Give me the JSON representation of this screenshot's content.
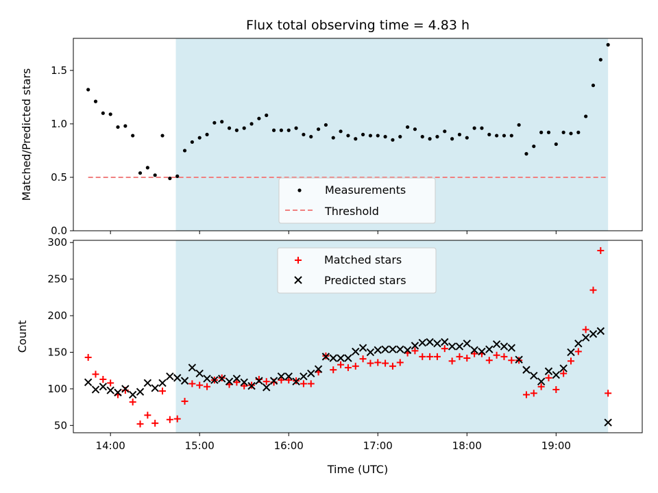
{
  "chart_data": [
    {
      "type": "scatter",
      "title": "Flux total observing time = 4.83 h",
      "ylabel": "Matched/Predicted stars",
      "xlabel": "",
      "ylim": [
        0,
        1.8
      ],
      "yticks": [
        0.0,
        0.5,
        1.0,
        1.5
      ],
      "ytick_labels": [
        "0.0",
        "0.5",
        "1.0",
        "1.5"
      ],
      "xlim": [
        "13:35",
        "19:58"
      ],
      "grid": false,
      "legend_position": "bottom-center",
      "shaded_region": {
        "x": [
          "14:44",
          "19:35"
        ],
        "color": "#add8e6"
      },
      "series": [
        {
          "name": "Measurements",
          "marker": "dot",
          "color": "#000000",
          "points": [
            [
              "13:45",
              1.32
            ],
            [
              "13:50",
              1.21
            ],
            [
              "13:55",
              1.1
            ],
            [
              "14:00",
              1.09
            ],
            [
              "14:05",
              0.97
            ],
            [
              "14:10",
              0.98
            ],
            [
              "14:15",
              0.89
            ],
            [
              "14:20",
              0.54
            ],
            [
              "14:25",
              0.59
            ],
            [
              "14:30",
              0.52
            ],
            [
              "14:35",
              0.89
            ],
            [
              "14:40",
              0.49
            ],
            [
              "14:45",
              0.51
            ],
            [
              "14:50",
              0.75
            ],
            [
              "14:55",
              0.83
            ],
            [
              "15:00",
              0.87
            ],
            [
              "15:05",
              0.9
            ],
            [
              "15:10",
              1.01
            ],
            [
              "15:15",
              1.02
            ],
            [
              "15:20",
              0.96
            ],
            [
              "15:25",
              0.94
            ],
            [
              "15:30",
              0.96
            ],
            [
              "15:35",
              1.0
            ],
            [
              "15:40",
              1.05
            ],
            [
              "15:45",
              1.08
            ],
            [
              "15:50",
              0.94
            ],
            [
              "15:55",
              0.94
            ],
            [
              "16:00",
              0.94
            ],
            [
              "16:05",
              0.96
            ],
            [
              "16:10",
              0.9
            ],
            [
              "16:15",
              0.88
            ],
            [
              "16:20",
              0.95
            ],
            [
              "16:25",
              0.99
            ],
            [
              "16:30",
              0.87
            ],
            [
              "16:35",
              0.93
            ],
            [
              "16:40",
              0.89
            ],
            [
              "16:45",
              0.86
            ],
            [
              "16:50",
              0.9
            ],
            [
              "16:55",
              0.89
            ],
            [
              "17:00",
              0.89
            ],
            [
              "17:05",
              0.88
            ],
            [
              "17:10",
              0.85
            ],
            [
              "17:15",
              0.88
            ],
            [
              "17:20",
              0.97
            ],
            [
              "17:25",
              0.95
            ],
            [
              "17:30",
              0.88
            ],
            [
              "17:35",
              0.86
            ],
            [
              "17:40",
              0.88
            ],
            [
              "17:45",
              0.93
            ],
            [
              "17:50",
              0.86
            ],
            [
              "17:55",
              0.9
            ],
            [
              "18:00",
              0.87
            ],
            [
              "18:05",
              0.96
            ],
            [
              "18:10",
              0.96
            ],
            [
              "18:15",
              0.9
            ],
            [
              "18:20",
              0.89
            ],
            [
              "18:25",
              0.89
            ],
            [
              "18:30",
              0.89
            ],
            [
              "18:35",
              0.99
            ],
            [
              "18:40",
              0.72
            ],
            [
              "18:45",
              0.79
            ],
            [
              "18:50",
              0.92
            ],
            [
              "18:55",
              0.92
            ],
            [
              "19:00",
              0.81
            ],
            [
              "19:05",
              0.92
            ],
            [
              "19:10",
              0.91
            ],
            [
              "19:15",
              0.92
            ],
            [
              "19:20",
              1.07
            ],
            [
              "19:25",
              1.36
            ],
            [
              "19:30",
              1.6
            ],
            [
              "19:35",
              1.74
            ]
          ]
        },
        {
          "name": "Threshold",
          "type": "line",
          "style": "dashed",
          "color": "#f08080",
          "points": [
            [
              "13:45",
              0.5
            ],
            [
              "19:35",
              0.5
            ]
          ]
        }
      ]
    },
    {
      "type": "scatter",
      "title": "",
      "ylabel": "Count",
      "xlabel": "Time (UTC)",
      "ylim": [
        40,
        303
      ],
      "yticks": [
        50,
        100,
        150,
        200,
        250,
        300
      ],
      "ytick_labels": [
        "50",
        "100",
        "150",
        "200",
        "250",
        "300"
      ],
      "xlim": [
        "13:35",
        "19:58"
      ],
      "xticks": [
        "14:00",
        "15:00",
        "16:00",
        "17:00",
        "18:00",
        "19:00"
      ],
      "xtick_labels": [
        "14:00",
        "15:00",
        "16:00",
        "17:00",
        "18:00",
        "19:00"
      ],
      "grid": false,
      "legend_position": "top-center",
      "shaded_region": {
        "x": [
          "14:44",
          "19:35"
        ],
        "color": "#add8e6"
      },
      "series": [
        {
          "name": "Matched stars",
          "marker": "plus",
          "color": "#ff0000",
          "points": [
            [
              "13:45",
              143
            ],
            [
              "13:50",
              120
            ],
            [
              "13:55",
              113
            ],
            [
              "14:00",
              108
            ],
            [
              "14:05",
              92
            ],
            [
              "14:10",
              98
            ],
            [
              "14:15",
              82
            ],
            [
              "14:20",
              52
            ],
            [
              "14:25",
              64
            ],
            [
              "14:30",
              53
            ],
            [
              "14:35",
              97
            ],
            [
              "14:40",
              58
            ],
            [
              "14:45",
              59
            ],
            [
              "14:50",
              83
            ],
            [
              "14:55",
              107
            ],
            [
              "15:00",
              105
            ],
            [
              "15:05",
              103
            ],
            [
              "15:10",
              112
            ],
            [
              "15:15",
              115
            ],
            [
              "15:20",
              106
            ],
            [
              "15:25",
              109
            ],
            [
              "15:30",
              104
            ],
            [
              "15:35",
              105
            ],
            [
              "15:40",
              113
            ],
            [
              "15:45",
              110
            ],
            [
              "15:50",
              109
            ],
            [
              "15:55",
              112
            ],
            [
              "16:00",
              112
            ],
            [
              "16:05",
              111
            ],
            [
              "16:10",
              107
            ],
            [
              "16:15",
              107
            ],
            [
              "16:20",
              123
            ],
            [
              "16:25",
              145
            ],
            [
              "16:30",
              126
            ],
            [
              "16:35",
              133
            ],
            [
              "16:40",
              129
            ],
            [
              "16:45",
              131
            ],
            [
              "16:50",
              141
            ],
            [
              "16:55",
              135
            ],
            [
              "17:00",
              136
            ],
            [
              "17:05",
              135
            ],
            [
              "17:10",
              131
            ],
            [
              "17:15",
              136
            ],
            [
              "17:20",
              149
            ],
            [
              "17:25",
              152
            ],
            [
              "17:30",
              144
            ],
            [
              "17:35",
              144
            ],
            [
              "17:40",
              144
            ],
            [
              "17:45",
              155
            ],
            [
              "17:50",
              138
            ],
            [
              "17:55",
              144
            ],
            [
              "18:00",
              142
            ],
            [
              "18:05",
              148
            ],
            [
              "18:10",
              148
            ],
            [
              "18:15",
              139
            ],
            [
              "18:20",
              146
            ],
            [
              "18:25",
              144
            ],
            [
              "18:30",
              139
            ],
            [
              "18:35",
              139
            ],
            [
              "18:40",
              92
            ],
            [
              "18:45",
              94
            ],
            [
              "18:50",
              103
            ],
            [
              "18:55",
              115
            ],
            [
              "19:00",
              99
            ],
            [
              "19:05",
              121
            ],
            [
              "19:10",
              138
            ],
            [
              "19:15",
              151
            ],
            [
              "19:20",
              181
            ],
            [
              "19:25",
              235
            ],
            [
              "19:30",
              289
            ],
            [
              "19:35",
              94
            ]
          ]
        },
        {
          "name": "Predicted stars",
          "marker": "x",
          "color": "#000000",
          "points": [
            [
              "13:45",
              109
            ],
            [
              "13:50",
              99
            ],
            [
              "13:55",
              103
            ],
            [
              "14:00",
              98
            ],
            [
              "14:05",
              95
            ],
            [
              "14:10",
              100
            ],
            [
              "14:15",
              92
            ],
            [
              "14:20",
              96
            ],
            [
              "14:25",
              108
            ],
            [
              "14:30",
              101
            ],
            [
              "14:35",
              108
            ],
            [
              "14:40",
              117
            ],
            [
              "14:45",
              115
            ],
            [
              "14:50",
              111
            ],
            [
              "14:55",
              129
            ],
            [
              "15:00",
              121
            ],
            [
              "15:05",
              114
            ],
            [
              "15:10",
              112
            ],
            [
              "15:15",
              114
            ],
            [
              "15:20",
              110
            ],
            [
              "15:25",
              114
            ],
            [
              "15:30",
              109
            ],
            [
              "15:35",
              104
            ],
            [
              "15:40",
              111
            ],
            [
              "15:45",
              102
            ],
            [
              "15:50",
              111
            ],
            [
              "15:55",
              117
            ],
            [
              "16:00",
              117
            ],
            [
              "16:05",
              110
            ],
            [
              "16:10",
              117
            ],
            [
              "16:15",
              121
            ],
            [
              "16:20",
              127
            ],
            [
              "16:25",
              144
            ],
            [
              "16:30",
              142
            ],
            [
              "16:35",
              142
            ],
            [
              "16:40",
              142
            ],
            [
              "16:45",
              151
            ],
            [
              "16:50",
              156
            ],
            [
              "16:55",
              150
            ],
            [
              "17:00",
              153
            ],
            [
              "17:05",
              154
            ],
            [
              "17:10",
              154
            ],
            [
              "17:15",
              154
            ],
            [
              "17:20",
              153
            ],
            [
              "17:25",
              159
            ],
            [
              "17:30",
              163
            ],
            [
              "17:35",
              164
            ],
            [
              "17:40",
              162
            ],
            [
              "17:45",
              164
            ],
            [
              "17:50",
              158
            ],
            [
              "17:55",
              158
            ],
            [
              "18:00",
              162
            ],
            [
              "18:05",
              153
            ],
            [
              "18:10",
              151
            ],
            [
              "18:15",
              154
            ],
            [
              "18:20",
              161
            ],
            [
              "18:25",
              158
            ],
            [
              "18:30",
              156
            ],
            [
              "18:35",
              140
            ],
            [
              "18:40",
              126
            ],
            [
              "18:45",
              118
            ],
            [
              "18:50",
              110
            ],
            [
              "18:55",
              124
            ],
            [
              "19:00",
              119
            ],
            [
              "19:05",
              128
            ],
            [
              "19:10",
              150
            ],
            [
              "19:15",
              162
            ],
            [
              "19:20",
              170
            ],
            [
              "19:25",
              175
            ],
            [
              "19:30",
              179
            ],
            [
              "19:35",
              54
            ]
          ]
        }
      ]
    }
  ]
}
